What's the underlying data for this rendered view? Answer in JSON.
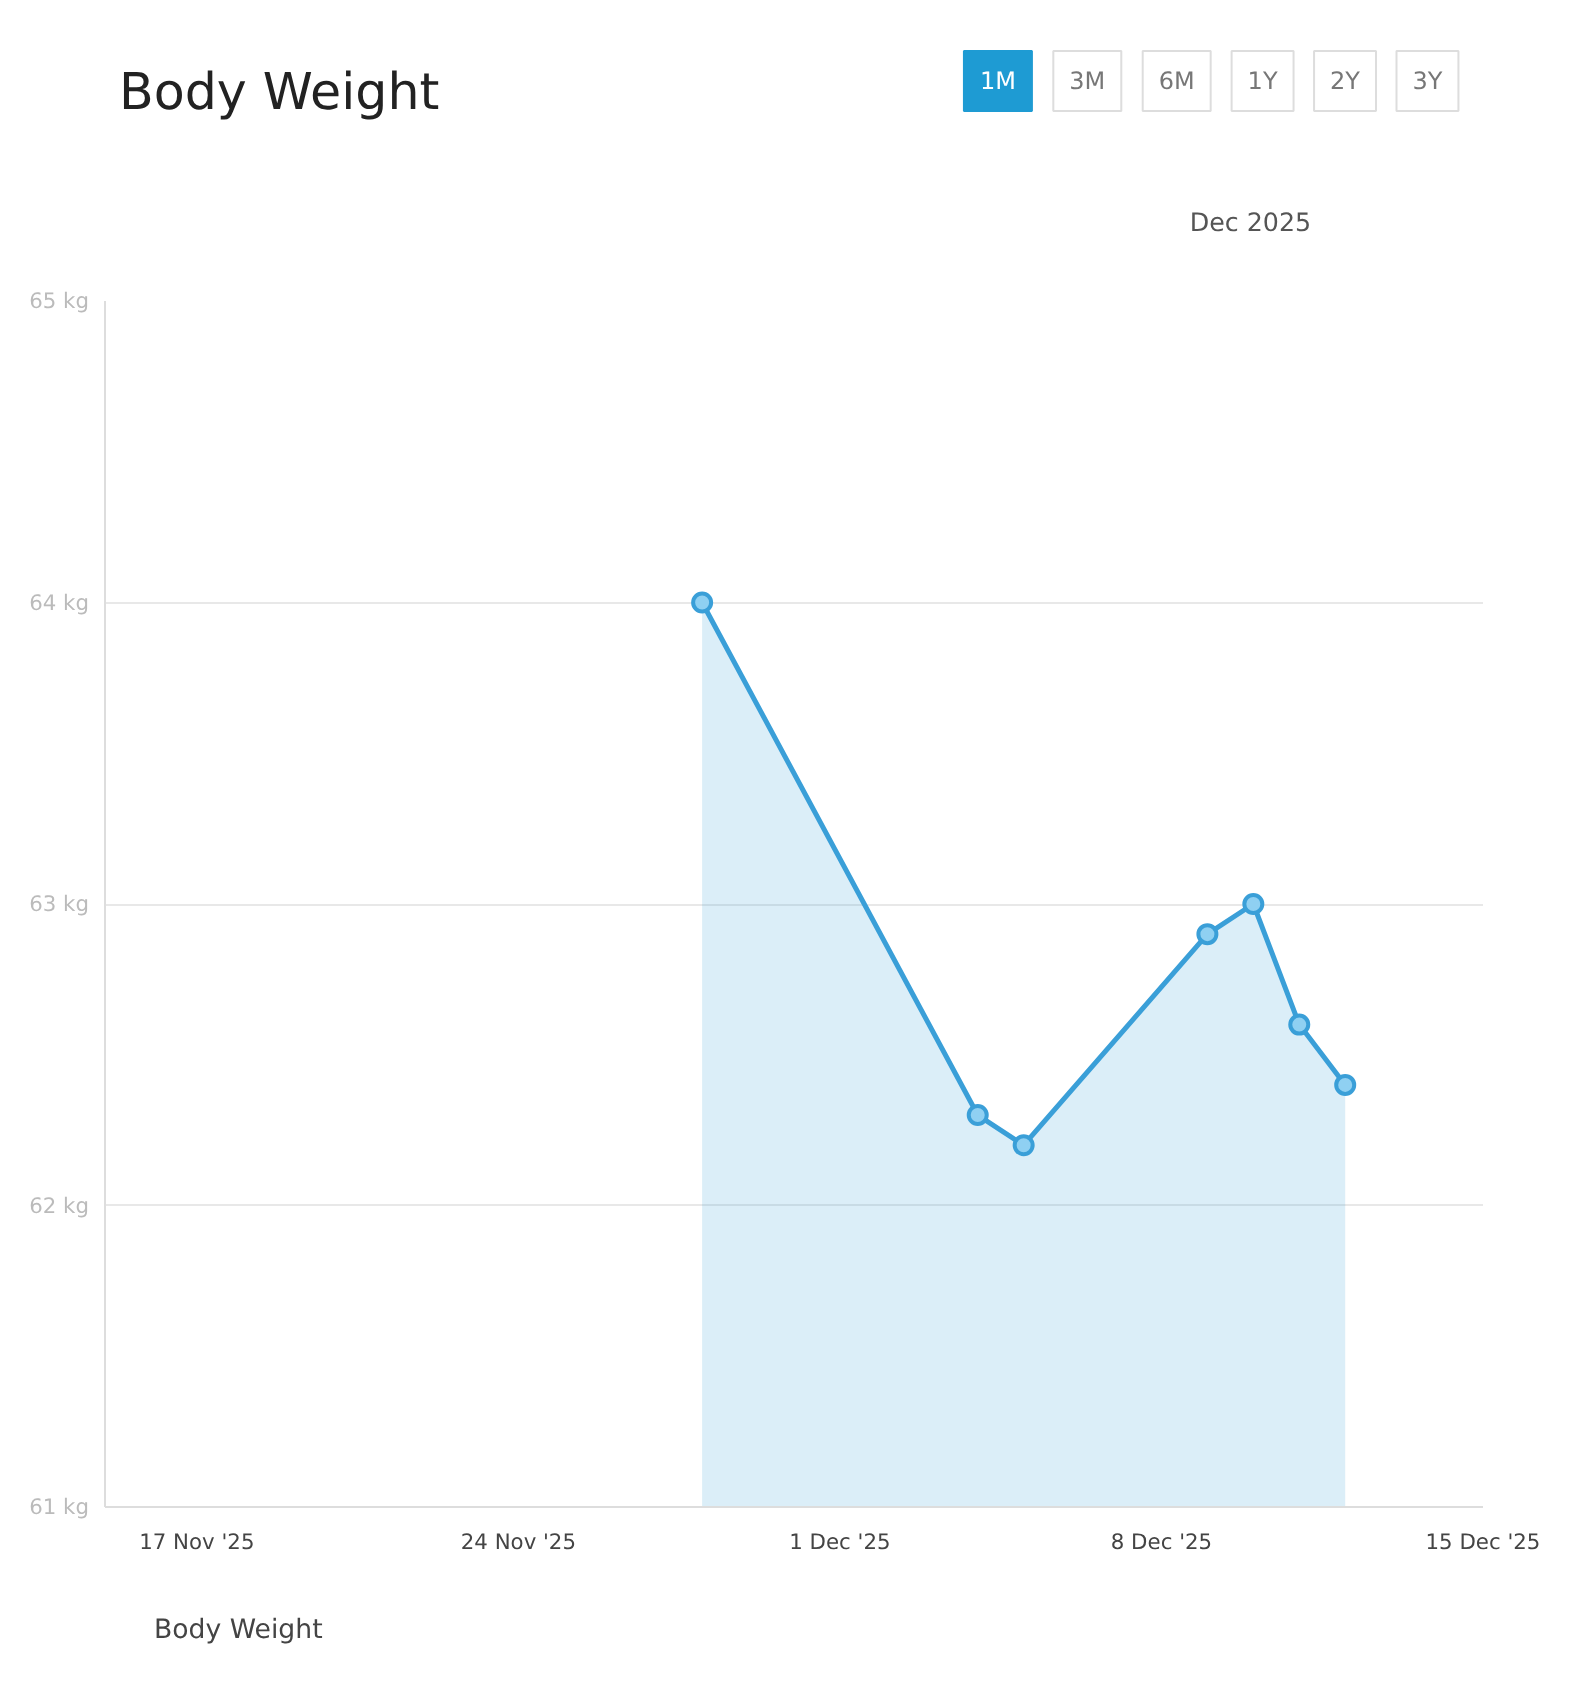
{
  "chart_data": {
    "type": "area",
    "title": "Body Weight",
    "annotations": [
      "1M",
      "3M",
      "6M",
      "1Y",
      "2Y",
      "3Y",
      "Dec 2025"
    ],
    "x": [
      "2025-11-28",
      "2025-12-04",
      "2025-12-05",
      "2025-12-09",
      "2025-12-10",
      "2025-12-11",
      "2025-12-12"
    ],
    "series": [
      {
        "name": "Body Weight",
        "color": "#3a9fd8",
        "values": [
          64.0,
          62.3,
          62.2,
          62.9,
          63.0,
          62.6,
          62.4
        ]
      }
    ],
    "xlim": [
      "2025-11-15",
      "2025-12-15"
    ],
    "xticks": [
      {
        "value": "2025-11-17",
        "label": "17 Nov '25"
      },
      {
        "value": "2025-11-24",
        "label": "24 Nov '25"
      },
      {
        "value": "2025-12-01",
        "label": "1 Dec '25"
      },
      {
        "value": "2025-12-08",
        "label": "8 Dec '25"
      },
      {
        "value": "2025-12-15",
        "label": "15 Dec '25"
      }
    ],
    "ylim": [
      61,
      65
    ],
    "yticks": [
      {
        "value": 61,
        "label": "61 kg"
      },
      {
        "value": 62,
        "label": "62 kg"
      },
      {
        "value": 63,
        "label": "63 kg"
      },
      {
        "value": 64,
        "label": "64 kg"
      },
      {
        "value": 65,
        "label": "65 kg"
      }
    ],
    "grid": "y",
    "legend": "bottom left",
    "marker": "circle",
    "line_style": "solid"
  }
}
